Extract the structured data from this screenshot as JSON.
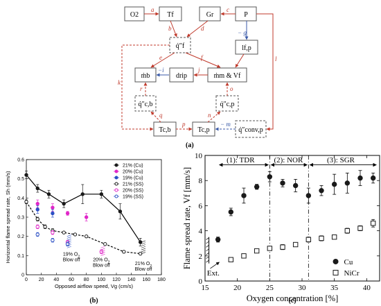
{
  "panel_a": {
    "label": "(a)",
    "nodes": {
      "o2": "O2",
      "tf": "Tf",
      "gr": "Gr",
      "p": "P",
      "qf": "q̇″f",
      "lfp": "lf,p",
      "mb": "ṁb",
      "drip": "drip",
      "mm": "ṁm & Vf",
      "qcb": "q̇″c,b",
      "qcp": "q̇″c,p",
      "tcb": "Tc,b",
      "tcp": "Tc,p",
      "qconv": "q̇″conv,p"
    },
    "edge_labels": {
      "a": "a",
      "b": "b",
      "c": "c",
      "d": "d",
      "e": "e",
      "f": "f",
      "g": "− g",
      "i": "−i",
      "j": "j",
      "k": "k",
      "l": "l",
      "n": "n",
      "o": "o",
      "p": "p",
      "q": "q",
      "r": "r",
      "m": "− m"
    },
    "colors": {
      "node_border": "#555555",
      "causal": "#c0392b",
      "negative": "#3a5aa8"
    }
  },
  "panel_b": {
    "label": "(b)",
    "annotations": {
      "blow19": [
        "19% O",
        "Blow off"
      ],
      "blow20": [
        "20% O",
        "Blow off"
      ],
      "blow21": [
        "21% O",
        "Blow off"
      ],
      "sub2": "2"
    }
  },
  "panel_c": {
    "label": "(c)",
    "regimes": {
      "tdr": "(1): TDR",
      "nor": "(2): NOR",
      "sgr": "(3): SGR"
    },
    "ext": "Ext."
  },
  "chart_data": [
    {
      "type": "scatter",
      "xlabel": "Opposed airflow speed, Vg (cm/s)",
      "ylabel": "Horizontal flame spread rate, Sh (mm/s)",
      "xlim": [
        0,
        180
      ],
      "ylim": [
        0,
        0.6
      ],
      "xticks": [
        0,
        20,
        40,
        60,
        80,
        100,
        120,
        140,
        160,
        180
      ],
      "yticks": [
        0,
        0.1,
        0.2,
        0.3,
        0.4,
        0.5,
        0.6
      ],
      "legend_position": "top-right",
      "series": [
        {
          "name": "21% (Cu)",
          "color": "#1a1a1a",
          "marker": "circle",
          "x": [
            0,
            15,
            30,
            50,
            75,
            100,
            125,
            152
          ],
          "y": [
            0.52,
            0.45,
            0.42,
            0.37,
            0.42,
            0.42,
            0.33,
            0.17
          ],
          "err": [
            0.02,
            0.02,
            0.02,
            0.02,
            0.05,
            0.02,
            0.04,
            0.02
          ]
        },
        {
          "name": "20% (Cu)",
          "color": "#e026c8",
          "marker": "circle",
          "x": [
            15,
            35,
            55,
            80
          ],
          "y": [
            0.37,
            0.35,
            0.32,
            0.3
          ],
          "err": [
            0.02,
            0.02,
            0.01,
            0.02
          ]
        },
        {
          "name": "19% (Cu)",
          "color": "#2b4fc4",
          "marker": "circle",
          "x": [
            15,
            35,
            55
          ],
          "y": [
            0.34,
            0.32,
            0.16
          ],
          "err": [
            0.02,
            0.02,
            0.01
          ]
        },
        {
          "name": "21% (SS)",
          "color": "#1a1a1a",
          "marker": "open-circle",
          "x": [
            0,
            15,
            25,
            35,
            50,
            65,
            80,
            105,
            130,
            152
          ],
          "y": [
            0.38,
            0.29,
            0.25,
            0.23,
            0.22,
            0.21,
            0.2,
            0.16,
            0.12,
            0.11
          ],
          "err": [
            0.01,
            0.01,
            0.01,
            0.01,
            0.005,
            0.005,
            0.005,
            0.005,
            0.005,
            0.005
          ]
        },
        {
          "name": "20% (SS)",
          "color": "#e026c8",
          "marker": "open-circle",
          "x": [
            15,
            35,
            55,
            100
          ],
          "y": [
            0.25,
            0.22,
            0.17,
            0.12
          ],
          "err": [
            0.01,
            0.01,
            0.01,
            0.01
          ]
        },
        {
          "name": "19% (SS)",
          "color": "#2b4fc4",
          "marker": "open-circle",
          "x": [
            15,
            35,
            55
          ],
          "y": [
            0.21,
            0.18,
            0.16
          ],
          "err": [
            0.01,
            0.01,
            0.01
          ]
        }
      ]
    },
    {
      "type": "scatter",
      "xlabel": "Oxygen concentration [%]",
      "ylabel": "Flame spread rate, Vf [mm/s]",
      "xlim": [
        15,
        42
      ],
      "ylim": [
        0,
        10
      ],
      "xticks": [
        15,
        20,
        25,
        30,
        35,
        40
      ],
      "yticks": [
        0,
        2,
        4,
        6,
        8,
        10
      ],
      "legend_position": "bottom-right",
      "series": [
        {
          "name": "Cu",
          "color": "#1a1a1a",
          "marker": "circle",
          "x": [
            17,
            19,
            21,
            23,
            25,
            27,
            29,
            31,
            33,
            35,
            37,
            39,
            41
          ],
          "y": [
            3.3,
            5.5,
            6.8,
            7.5,
            8.3,
            7.8,
            7.6,
            6.8,
            7.2,
            7.7,
            7.8,
            8.2,
            8.2
          ],
          "err": [
            0.2,
            0.3,
            0.6,
            0.2,
            0.4,
            0.3,
            0.5,
            0.6,
            0.4,
            0.8,
            0.8,
            0.6,
            0.4
          ]
        },
        {
          "name": "NiCr",
          "color": "#1a1a1a",
          "marker": "open-square",
          "x": [
            19,
            21,
            23,
            25,
            27,
            29,
            31,
            33,
            35,
            37,
            39,
            41
          ],
          "y": [
            1.7,
            2.0,
            2.4,
            2.6,
            2.7,
            2.9,
            3.3,
            3.4,
            3.5,
            4.0,
            4.2,
            4.6
          ],
          "err": [
            0.1,
            0.1,
            0.1,
            0.1,
            0.2,
            0.1,
            0.2,
            0.2,
            0.1,
            0.2,
            0.2,
            0.3
          ]
        }
      ]
    }
  ]
}
